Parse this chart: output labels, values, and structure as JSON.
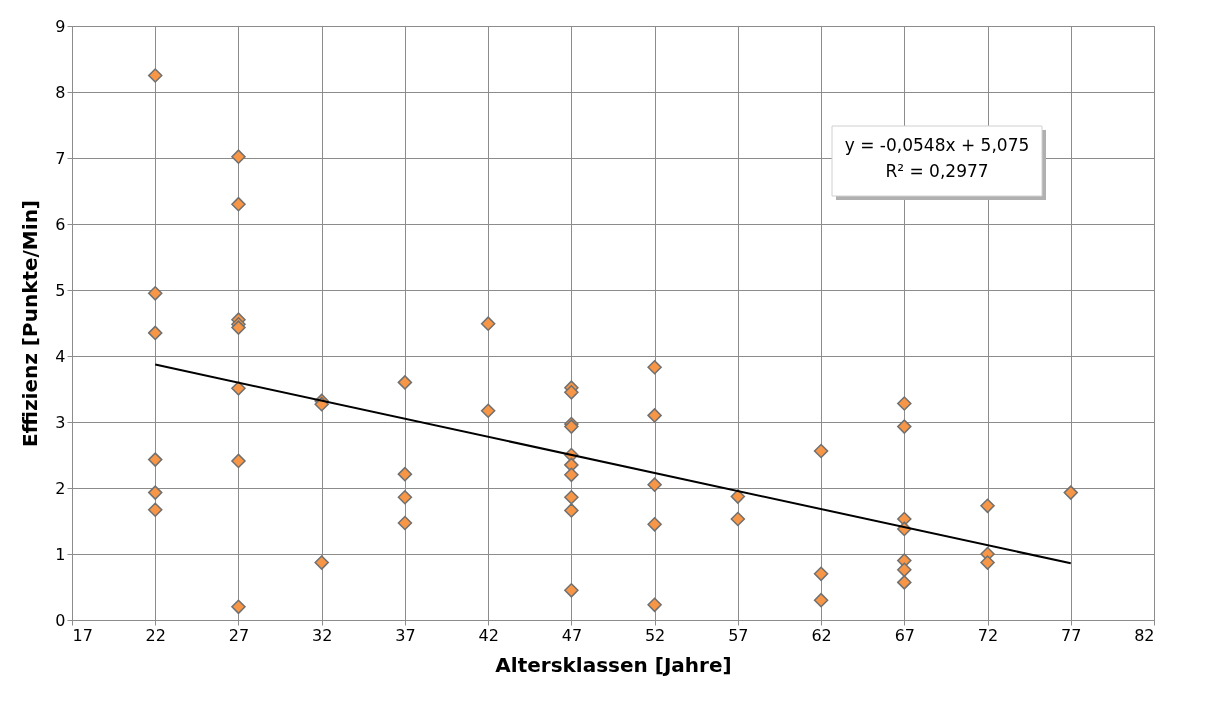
{
  "chart_data": {
    "type": "scatter",
    "xlabel": "Altersklassen [Jahre]",
    "ylabel": "Effizienz [Punkte/Min]",
    "xlim": [
      17,
      82
    ],
    "xticks": [
      17,
      22,
      27,
      32,
      37,
      42,
      47,
      52,
      57,
      62,
      67,
      72,
      77,
      82
    ],
    "ylim": [
      0,
      9
    ],
    "yticks": [
      0,
      1,
      2,
      3,
      4,
      5,
      6,
      7,
      8,
      9
    ],
    "grid": true,
    "annotations": [
      "y = -0,0548x + 5,075",
      "R² = 0,2977"
    ],
    "series": [
      {
        "marker": "diamond",
        "color": "#f79646",
        "x": [
          22,
          22,
          22,
          22,
          22,
          22,
          27,
          27,
          27,
          27,
          27,
          27,
          27,
          27,
          32,
          32,
          32,
          37,
          37,
          37,
          37,
          42,
          42,
          47,
          47,
          47,
          47,
          47,
          47,
          47,
          47,
          47,
          47,
          52,
          52,
          52,
          52,
          52,
          57,
          57,
          62,
          62,
          62,
          67,
          67,
          67,
          67,
          67,
          67,
          67,
          72,
          72,
          72,
          77
        ],
        "values": [
          8.25,
          4.95,
          4.35,
          2.43,
          1.93,
          1.67,
          7.02,
          6.3,
          4.55,
          4.48,
          4.43,
          3.51,
          2.41,
          0.2,
          3.32,
          3.27,
          0.87,
          3.6,
          2.21,
          1.86,
          1.47,
          4.49,
          3.17,
          3.52,
          3.45,
          2.97,
          2.93,
          2.5,
          2.35,
          2.2,
          1.86,
          1.66,
          0.45,
          3.83,
          3.1,
          2.05,
          1.45,
          0.23,
          1.87,
          1.53,
          2.56,
          0.7,
          0.3,
          3.28,
          2.93,
          1.53,
          1.38,
          0.9,
          0.76,
          0.57,
          1.73,
          1.0,
          0.87,
          1.93
        ]
      },
      {
        "type": "line",
        "marker": "none",
        "color": "#000000",
        "x": [
          22,
          77
        ],
        "values": [
          3.87,
          0.86
        ]
      }
    ]
  }
}
